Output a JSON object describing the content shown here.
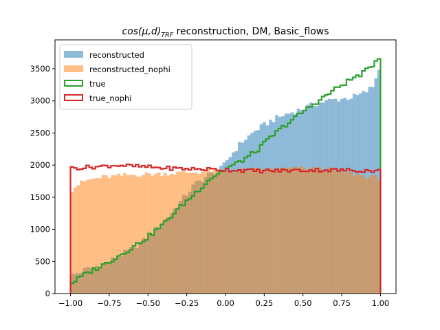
{
  "chart_data": {
    "type": "histogram",
    "title": {
      "math_base": "cos(μ,d)",
      "math_sub": "TRF",
      "rest": " reconstruction, DM, Basic_flows"
    },
    "xlabel": "",
    "ylabel": "",
    "xlim": [
      -1.1,
      1.1
    ],
    "ylim": [
      0,
      3950
    ],
    "xticks": [
      -1.0,
      -0.75,
      -0.5,
      -0.25,
      0.0,
      0.25,
      0.5,
      0.75,
      1.0
    ],
    "xtick_labels": [
      "−1.00",
      "−0.75",
      "−0.50",
      "−0.25",
      "0.00",
      "0.25",
      "0.50",
      "0.75",
      "1.00"
    ],
    "yticks": [
      0,
      500,
      1000,
      1500,
      2000,
      2500,
      3000,
      3500
    ],
    "ytick_labels": [
      "0",
      "500",
      "1000",
      "1500",
      "2000",
      "2500",
      "3000",
      "3500"
    ],
    "grid": false,
    "legend_position": "upper-left",
    "bins": {
      "start": -1.0,
      "end": 1.0,
      "count": 100
    },
    "series": [
      {
        "name": "reconstructed",
        "style": "filled",
        "color": "#1f77b4",
        "alpha": 0.5,
        "control_points": [
          [
            -1.0,
            280
          ],
          [
            -0.95,
            320
          ],
          [
            -0.9,
            380
          ],
          [
            -0.8,
            450
          ],
          [
            -0.7,
            560
          ],
          [
            -0.6,
            700
          ],
          [
            -0.5,
            880
          ],
          [
            -0.4,
            1120
          ],
          [
            -0.3,
            1400
          ],
          [
            -0.2,
            1700
          ],
          [
            -0.1,
            1860
          ],
          [
            -0.02,
            1950
          ],
          [
            0.0,
            2050
          ],
          [
            0.05,
            2200
          ],
          [
            0.1,
            2350
          ],
          [
            0.2,
            2550
          ],
          [
            0.3,
            2700
          ],
          [
            0.4,
            2800
          ],
          [
            0.5,
            2880
          ],
          [
            0.6,
            2970
          ],
          [
            0.7,
            3020
          ],
          [
            0.8,
            3050
          ],
          [
            0.85,
            3080
          ],
          [
            0.9,
            3130
          ],
          [
            0.95,
            3220
          ],
          [
            0.98,
            3450
          ],
          [
            1.0,
            3500
          ]
        ]
      },
      {
        "name": "reconstructed_nophi",
        "style": "filled",
        "color": "#ff7f0e",
        "alpha": 0.5,
        "control_points": [
          [
            -1.0,
            1600
          ],
          [
            -0.95,
            1700
          ],
          [
            -0.9,
            1760
          ],
          [
            -0.8,
            1810
          ],
          [
            -0.7,
            1830
          ],
          [
            -0.6,
            1850
          ],
          [
            -0.5,
            1860
          ],
          [
            -0.4,
            1870
          ],
          [
            -0.3,
            1880
          ],
          [
            -0.2,
            1890
          ],
          [
            -0.1,
            1905
          ],
          [
            0.0,
            1910
          ],
          [
            0.1,
            1920
          ],
          [
            0.2,
            1930
          ],
          [
            0.3,
            1935
          ],
          [
            0.4,
            1945
          ],
          [
            0.5,
            1950
          ],
          [
            0.6,
            1945
          ],
          [
            0.7,
            1920
          ],
          [
            0.8,
            1880
          ],
          [
            0.9,
            1830
          ],
          [
            1.0,
            1790
          ]
        ]
      },
      {
        "name": "true",
        "style": "step",
        "color": "#2ca02c",
        "control_points": [
          [
            -1.0,
            150
          ],
          [
            -0.9,
            310
          ],
          [
            -0.8,
            430
          ],
          [
            -0.7,
            570
          ],
          [
            -0.6,
            720
          ],
          [
            -0.5,
            880
          ],
          [
            -0.4,
            1080
          ],
          [
            -0.3,
            1330
          ],
          [
            -0.2,
            1550
          ],
          [
            -0.1,
            1790
          ],
          [
            0.0,
            1940
          ],
          [
            0.1,
            2060
          ],
          [
            0.2,
            2220
          ],
          [
            0.3,
            2450
          ],
          [
            0.4,
            2650
          ],
          [
            0.5,
            2830
          ],
          [
            0.6,
            3000
          ],
          [
            0.7,
            3170
          ],
          [
            0.8,
            3320
          ],
          [
            0.9,
            3450
          ],
          [
            0.95,
            3560
          ],
          [
            1.0,
            3720
          ]
        ]
      },
      {
        "name": "true_nophi",
        "style": "step",
        "color": "#d62728",
        "control_points": [
          [
            -1.0,
            1950
          ],
          [
            -0.8,
            1980
          ],
          [
            -0.7,
            2000
          ],
          [
            -0.6,
            1985
          ],
          [
            -0.5,
            1970
          ],
          [
            -0.4,
            1955
          ],
          [
            -0.3,
            1945
          ],
          [
            -0.2,
            1940
          ],
          [
            -0.1,
            1935
          ],
          [
            0.0,
            1930
          ],
          [
            0.2,
            1910
          ],
          [
            0.4,
            1915
          ],
          [
            0.6,
            1925
          ],
          [
            0.8,
            1920
          ],
          [
            1.0,
            1910
          ]
        ]
      }
    ]
  }
}
